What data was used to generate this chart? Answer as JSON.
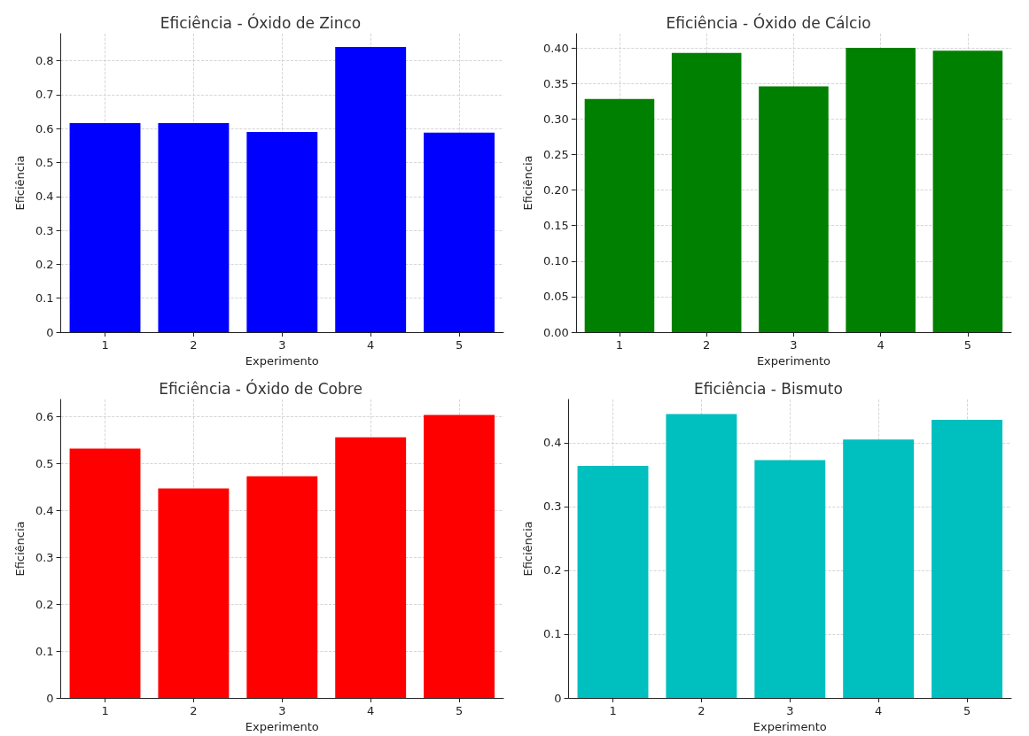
{
  "chart_data": [
    {
      "type": "bar",
      "title": "Eficiência - Óxido de Zinco",
      "xlabel": "Experimento",
      "ylabel": "Eficiência",
      "categories": [
        "1",
        "2",
        "3",
        "4",
        "5"
      ],
      "values": [
        0.616,
        0.616,
        0.59,
        0.841,
        0.588
      ],
      "color": "#0000ff",
      "ylim": [
        0,
        0.88
      ],
      "yticks": [
        0,
        0.1,
        0.2,
        0.3,
        0.4,
        0.5,
        0.6,
        0.7,
        0.8
      ],
      "grid": true
    },
    {
      "type": "bar",
      "title": "Eficiência - Óxido de Cálcio",
      "xlabel": "Experimento",
      "ylabel": "Eficiência",
      "categories": [
        "1",
        "2",
        "3",
        "4",
        "5"
      ],
      "values": [
        0.328,
        0.393,
        0.346,
        0.4,
        0.396
      ],
      "color": "#008000",
      "ylim": [
        0,
        0.42
      ],
      "yticks": [
        {
          "value": 0,
          "label": "0.00"
        },
        {
          "value": 0.05,
          "label": "0.05"
        },
        {
          "value": 0.1,
          "label": "0.10"
        },
        {
          "value": 0.15,
          "label": "0.15"
        },
        {
          "value": 0.2,
          "label": "0.20"
        },
        {
          "value": 0.25,
          "label": "0.25"
        },
        {
          "value": 0.3,
          "label": "0.30"
        },
        {
          "value": 0.35,
          "label": "0.35"
        },
        {
          "value": 0.4,
          "label": "0.40"
        }
      ],
      "grid": true
    },
    {
      "type": "bar",
      "title": "Eficiência - Óxido de Cobre",
      "xlabel": "Experimento",
      "ylabel": "Eficiência",
      "categories": [
        "1",
        "2",
        "3",
        "4",
        "5"
      ],
      "values": [
        0.532,
        0.447,
        0.473,
        0.556,
        0.604
      ],
      "color": "#ff0000",
      "ylim": [
        0,
        0.637
      ],
      "yticks": [
        0,
        0.1,
        0.2,
        0.3,
        0.4,
        0.5,
        0.6
      ],
      "grid": true
    },
    {
      "type": "bar",
      "title": "Eficiência - Bismuto",
      "xlabel": "Experimento",
      "ylabel": "Eficiência",
      "categories": [
        "1",
        "2",
        "3",
        "4",
        "5"
      ],
      "values": [
        0.364,
        0.445,
        0.373,
        0.405,
        0.436
      ],
      "color": "#00bfbf",
      "ylim": [
        0,
        0.468
      ],
      "yticks": [
        0,
        0.1,
        0.2,
        0.3,
        0.4
      ],
      "grid": true
    }
  ]
}
